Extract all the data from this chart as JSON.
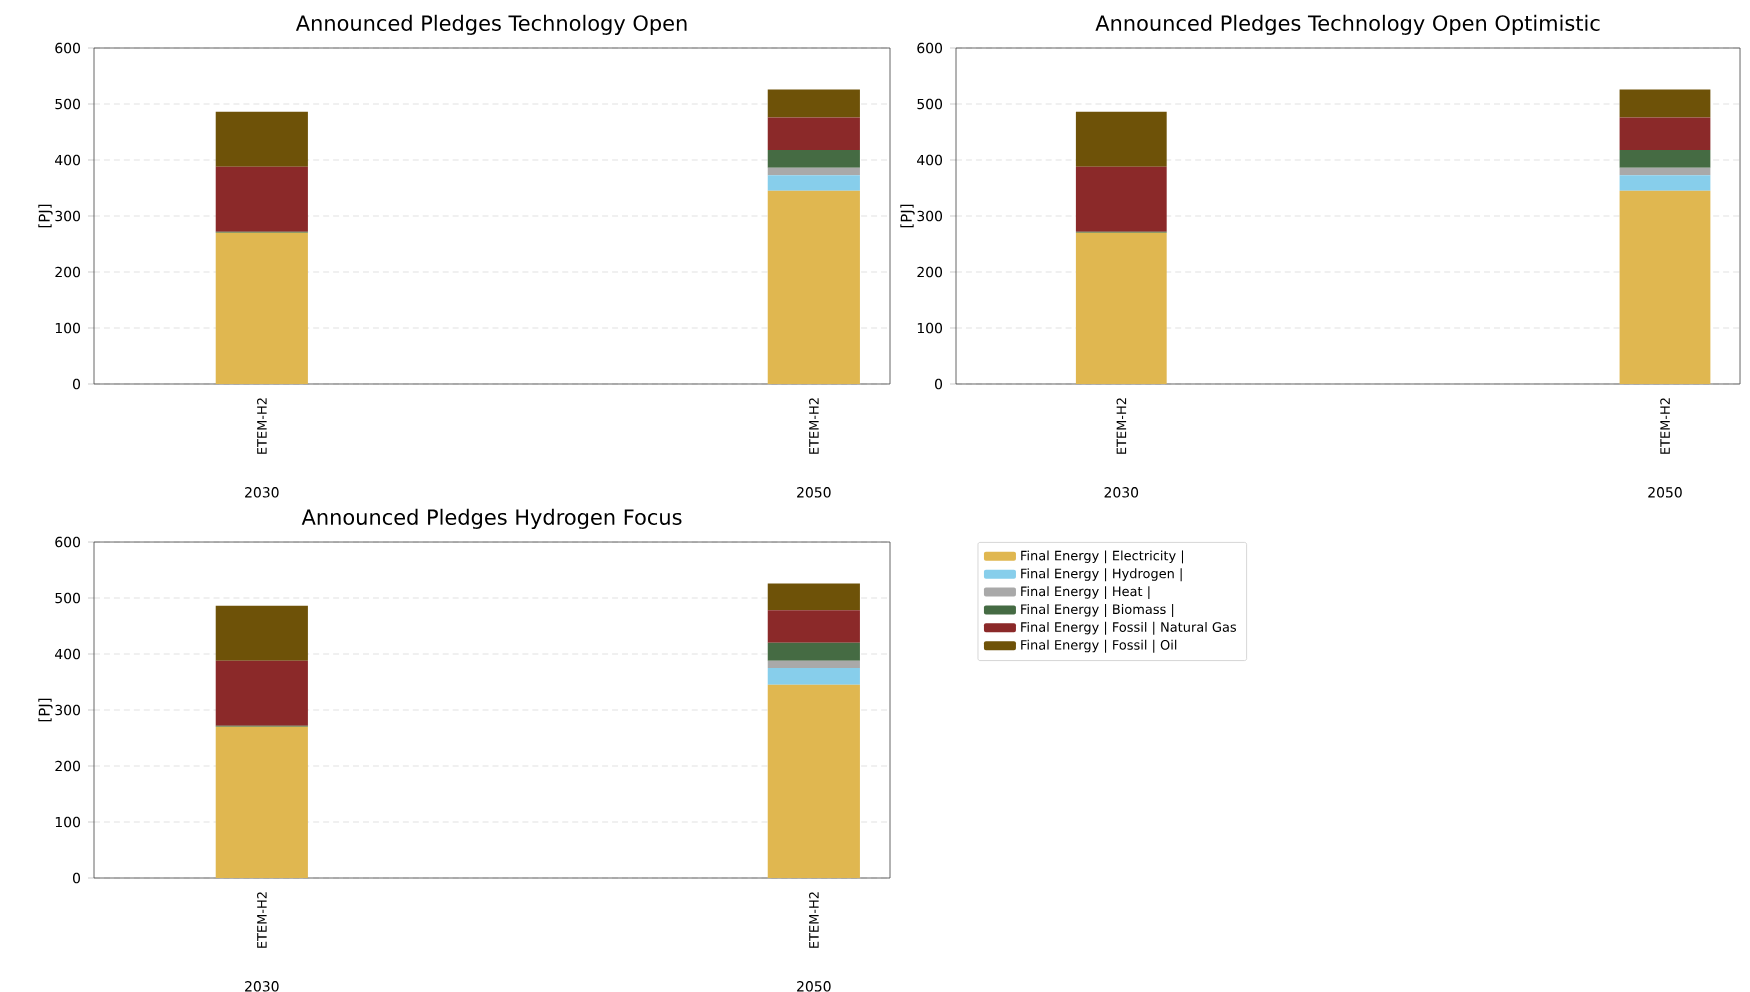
{
  "chart_data": [
    {
      "type": "bar",
      "stacked": true,
      "title": "Announced Pledges Technology Open",
      "ylabel": "[PJ]",
      "categories": [
        "ETEM-H2",
        "ETEM-H2"
      ],
      "annotations": [
        "2030",
        "2050"
      ],
      "ylim": [
        0,
        600
      ],
      "yticks": [
        0,
        100,
        200,
        300,
        400,
        500,
        600
      ],
      "grid": "y",
      "series": [
        {
          "color": "#e0b750",
          "values": [
            270,
            345
          ]
        },
        {
          "color": "#87ceeb",
          "values": [
            0,
            28
          ]
        },
        {
          "color": "#a9a9a9",
          "values": [
            0,
            13
          ]
        },
        {
          "color": "#456b43",
          "values": [
            2,
            32
          ]
        },
        {
          "color": "#8b2929",
          "values": [
            116,
            58
          ]
        },
        {
          "color": "#6e5208",
          "values": [
            98,
            50
          ]
        }
      ]
    },
    {
      "type": "bar",
      "stacked": true,
      "title": "Announced Pledges Technology Open Optimistic",
      "ylabel": "[PJ]",
      "categories": [
        "ETEM-H2",
        "ETEM-H2"
      ],
      "annotations": [
        "2030",
        "2050"
      ],
      "ylim": [
        0,
        600
      ],
      "yticks": [
        0,
        100,
        200,
        300,
        400,
        500,
        600
      ],
      "grid": "y",
      "series": [
        {
          "color": "#e0b750",
          "values": [
            270,
            345
          ]
        },
        {
          "color": "#87ceeb",
          "values": [
            0,
            28
          ]
        },
        {
          "color": "#a9a9a9",
          "values": [
            0,
            13
          ]
        },
        {
          "color": "#456b43",
          "values": [
            2,
            32
          ]
        },
        {
          "color": "#8b2929",
          "values": [
            116,
            58
          ]
        },
        {
          "color": "#6e5208",
          "values": [
            98,
            50
          ]
        }
      ]
    },
    {
      "type": "bar",
      "stacked": true,
      "title": "Announced Pledges Hydrogen Focus",
      "ylabel": "[PJ]",
      "categories": [
        "ETEM-H2",
        "ETEM-H2"
      ],
      "annotations": [
        "2030",
        "2050"
      ],
      "ylim": [
        0,
        600
      ],
      "yticks": [
        0,
        100,
        200,
        300,
        400,
        500,
        600
      ],
      "grid": "y",
      "legend": "right",
      "series": [
        {
          "name": "Final Energy | Electricity |",
          "color": "#e0b750",
          "values": [
            270,
            345
          ]
        },
        {
          "name": "Final Energy | Hydrogen |",
          "color": "#87ceeb",
          "values": [
            0,
            30
          ]
        },
        {
          "name": "Final Energy | Heat |",
          "color": "#a9a9a9",
          "values": [
            0,
            13
          ]
        },
        {
          "name": "Final Energy | Biomass |",
          "color": "#456b43",
          "values": [
            2,
            32
          ]
        },
        {
          "name": "Final Energy | Fossil | Natural Gas",
          "color": "#8b2929",
          "values": [
            116,
            58
          ]
        },
        {
          "name": "Final Energy | Fossil | Oil",
          "color": "#6e5208",
          "values": [
            98,
            48
          ]
        }
      ]
    }
  ]
}
